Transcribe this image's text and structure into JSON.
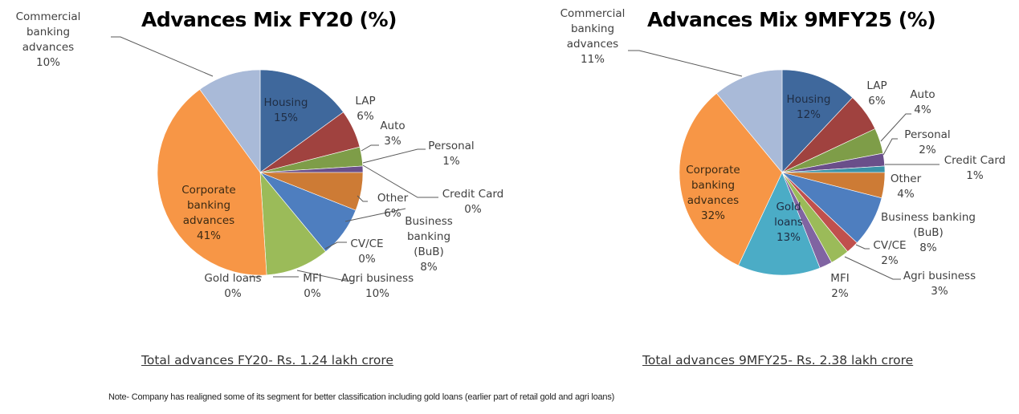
{
  "chart_data": [
    {
      "type": "pie",
      "title": "Advances Mix FY20 (%)",
      "categories": [
        "Housing",
        "LAP",
        "Auto",
        "Personal",
        "Credit Card",
        "Other",
        "Business banking (BuB)",
        "CV/CE",
        "Agri business",
        "MFI",
        "Gold loans",
        "Corporate banking advances",
        "Commercial banking advances"
      ],
      "values": [
        15,
        6,
        3,
        1,
        0,
        6,
        8,
        0,
        10,
        0,
        0,
        41,
        10
      ],
      "data_labels": [
        "Housing\n15%",
        "LAP\n6%",
        "Auto\n3%",
        "Personal\n1%",
        "Credit Card\n0%",
        "Other\n6%",
        "Business\nbanking\n(BuB)\n8%",
        "CV/CE\n0%",
        "Agri business\n10%",
        "MFI\n0%",
        "Gold loans\n0%",
        "Corporate\nbanking\nadvances\n41%",
        "Commercial\nbanking\nadvances\n10%"
      ],
      "colors": [
        "#3F689C",
        "#A0423F",
        "#7E9D48",
        "#6A4F8A",
        "#3A93A8",
        "#CD7B35",
        "#4E7EBF",
        "#C0504D",
        "#9BBB59",
        "#8064A2",
        "#4BACC6",
        "#F79646",
        "#A9BAD8"
      ],
      "start_angle_deg": 0,
      "direction": "clockwise",
      "footer": "Total advances FY20- Rs. 1.24 lakh crore"
    },
    {
      "type": "pie",
      "title": "Advances Mix 9MFY25 (%)",
      "categories": [
        "Housing",
        "LAP",
        "Auto",
        "Personal",
        "Credit Card",
        "Other",
        "Business banking (BuB)",
        "CV/CE",
        "Agri business",
        "MFI",
        "Gold loans",
        "Corporate banking advances",
        "Commercial banking advances"
      ],
      "values": [
        12,
        6,
        4,
        2,
        1,
        4,
        8,
        2,
        3,
        2,
        13,
        32,
        11
      ],
      "data_labels": [
        "Housing\n12%",
        "LAP\n6%",
        "Auto\n4%",
        "Personal\n2%",
        "Credit Card\n1%",
        "Other\n4%",
        "Business banking\n(BuB)\n8%",
        "CV/CE\n2%",
        "Agri business\n3%",
        "MFI\n2%",
        "Gold\nloans\n13%",
        "Corporate\nbanking\nadvances\n32%",
        "Commercial\nbanking\nadvances\n11%"
      ],
      "colors": [
        "#3F689C",
        "#A0423F",
        "#7E9D48",
        "#6A4F8A",
        "#3A93A8",
        "#CD7B35",
        "#4E7EBF",
        "#C0504D",
        "#9BBB59",
        "#8064A2",
        "#4BACC6",
        "#F79646",
        "#A9BAD8"
      ],
      "start_angle_deg": 0,
      "direction": "clockwise",
      "footer": "Total advances 9MFY25- Rs. 2.38 lakh crore"
    }
  ],
  "note": "Note- Company has realigned some of its segment for better classification including gold loans (earlier part of retail gold and agri loans)"
}
